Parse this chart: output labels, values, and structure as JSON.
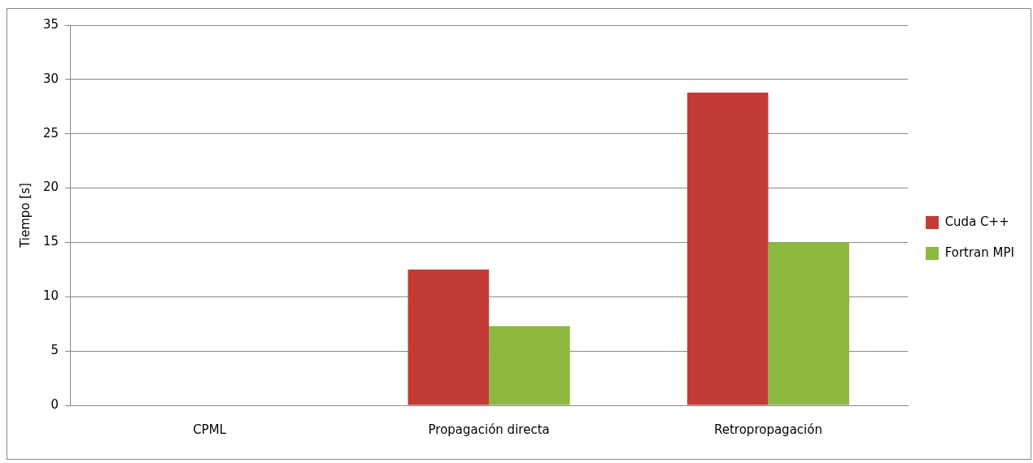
{
  "chart_data": {
    "type": "bar",
    "ylabel": "Tiempo [s]",
    "categories": [
      "CPML",
      "Propagación directa",
      "Retropropagación"
    ],
    "series": [
      {
        "name": "Cuda C++",
        "color": "#c23b37",
        "values": [
          null,
          12.5,
          28.8
        ]
      },
      {
        "name": "Fortran MPI",
        "color": "#8cb83f",
        "values": [
          null,
          7.3,
          15.0
        ]
      }
    ],
    "ylim": [
      0,
      35
    ],
    "yticks": [
      0,
      5,
      10,
      15,
      20,
      25,
      30,
      35
    ],
    "grid": "y",
    "legend": "right"
  }
}
